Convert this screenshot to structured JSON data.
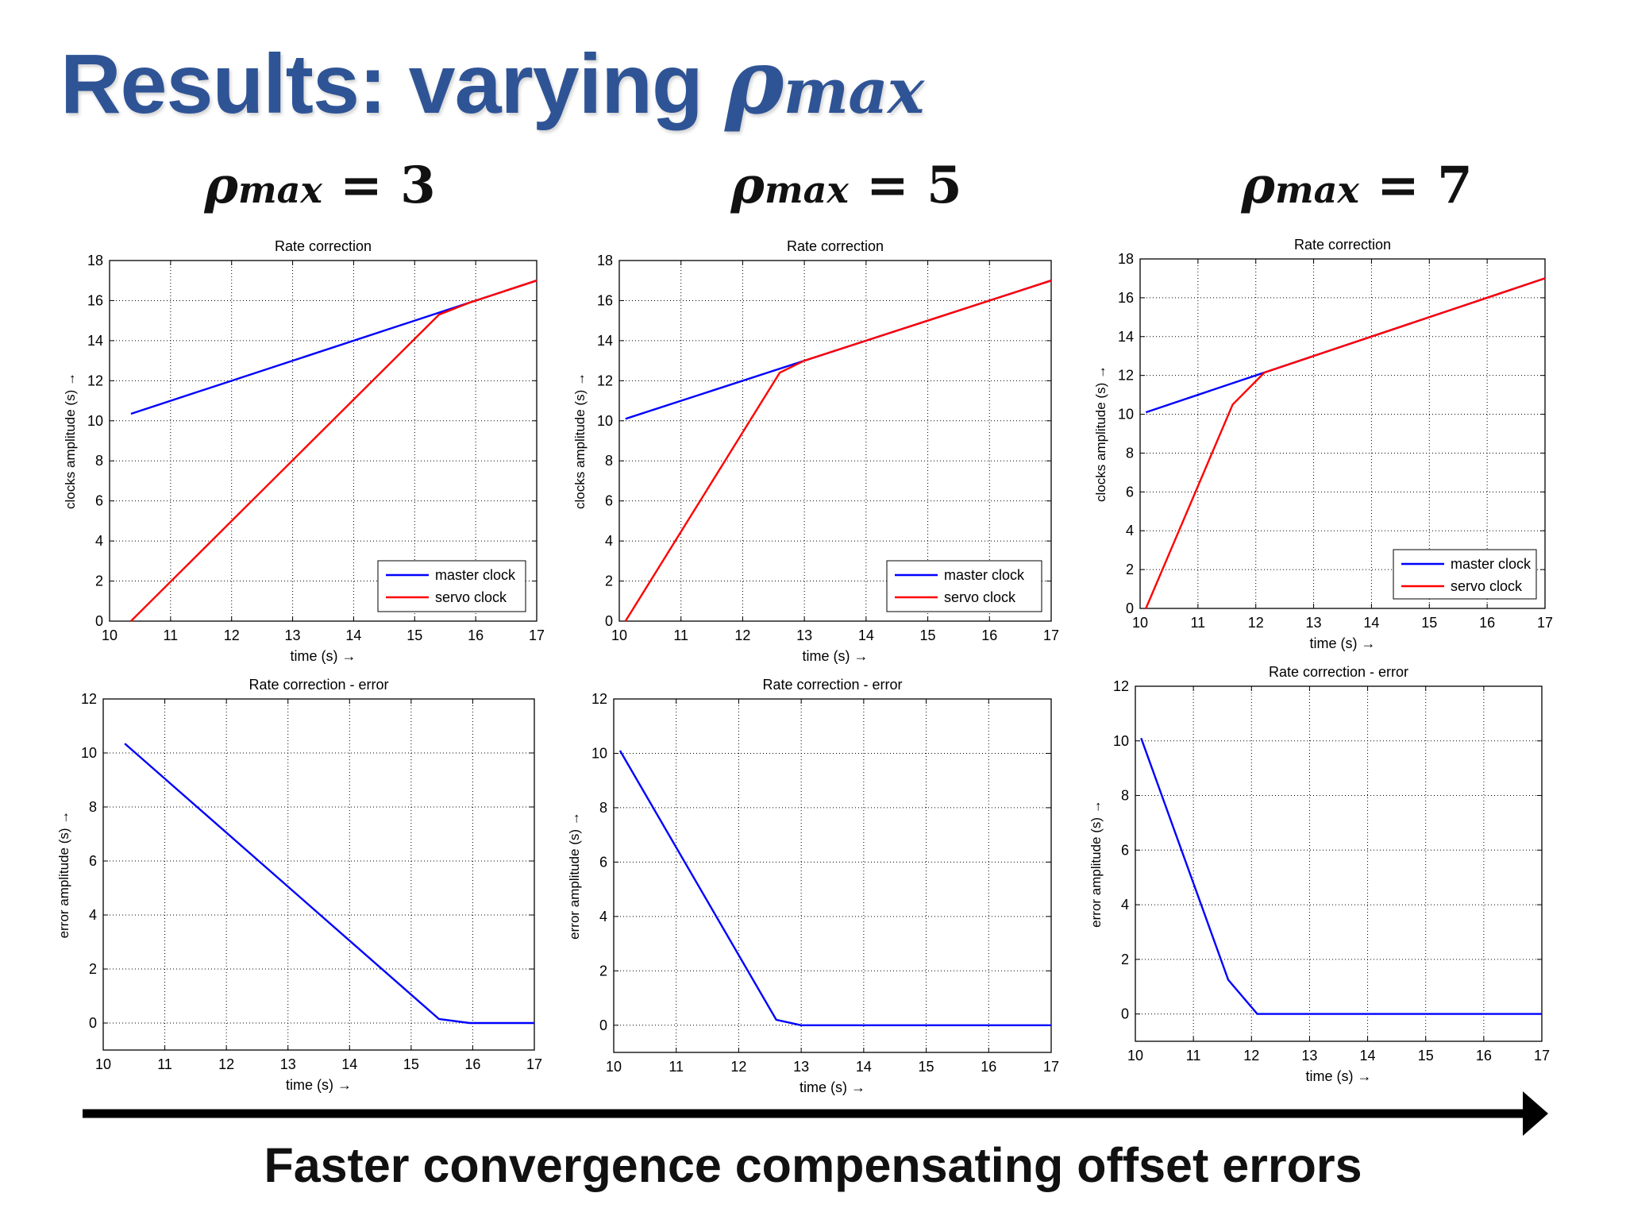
{
  "slide": {
    "title_text": "Results: varying ",
    "title_symbol": "ρ",
    "title_subscript": "max",
    "conclusion": "Faster convergence compensating offset errors"
  },
  "columns": [
    {
      "symbol": "ρ",
      "subscript": "max",
      "eq": " = 3"
    },
    {
      "symbol": "ρ",
      "subscript": "max",
      "eq": " = 5"
    },
    {
      "symbol": "ρ",
      "subscript": "max",
      "eq": " = 7"
    }
  ],
  "colors": {
    "master": "#0000ff",
    "servo": "#ff0000",
    "error": "#0000ff",
    "arrow": "#000000",
    "title": "#2f5496"
  },
  "chart_data": [
    {
      "type": "line",
      "title": "Rate correction",
      "xlabel": "time (s) →",
      "ylabel": "clocks amplitude (s) →",
      "xlim": [
        10,
        17
      ],
      "ylim": [
        0,
        18
      ],
      "xticks": [
        10,
        11,
        12,
        13,
        14,
        15,
        16,
        17
      ],
      "yticks": [
        0,
        2,
        4,
        6,
        8,
        10,
        12,
        14,
        16,
        18
      ],
      "grid": true,
      "legend_position": "bottom-right",
      "series": [
        {
          "name": "master clock",
          "x": [
            10.35,
            17
          ],
          "y": [
            10.35,
            17
          ]
        },
        {
          "name": "servo clock",
          "x": [
            10.35,
            15.4,
            15.9,
            17
          ],
          "y": [
            0,
            15.3,
            15.9,
            17
          ]
        }
      ]
    },
    {
      "type": "line",
      "title": "Rate correction",
      "xlabel": "time (s) →",
      "ylabel": "clocks amplitude (s) →",
      "xlim": [
        10,
        17
      ],
      "ylim": [
        0,
        18
      ],
      "xticks": [
        10,
        11,
        12,
        13,
        14,
        15,
        16,
        17
      ],
      "yticks": [
        0,
        2,
        4,
        6,
        8,
        10,
        12,
        14,
        16,
        18
      ],
      "grid": true,
      "legend_position": "bottom-right",
      "series": [
        {
          "name": "master clock",
          "x": [
            10.1,
            17
          ],
          "y": [
            10.1,
            17
          ]
        },
        {
          "name": "servo clock",
          "x": [
            10.1,
            12.6,
            13.0,
            17
          ],
          "y": [
            0,
            12.4,
            13.0,
            17
          ]
        }
      ]
    },
    {
      "type": "line",
      "title": "Rate correction",
      "xlabel": "time (s) →",
      "ylabel": "clocks amplitude (s) →",
      "xlim": [
        10,
        17
      ],
      "ylim": [
        0,
        18
      ],
      "xticks": [
        10,
        11,
        12,
        13,
        14,
        15,
        16,
        17
      ],
      "yticks": [
        0,
        2,
        4,
        6,
        8,
        10,
        12,
        14,
        16,
        18
      ],
      "grid": true,
      "legend_position": "bottom-right",
      "series": [
        {
          "name": "master clock",
          "x": [
            10.1,
            17
          ],
          "y": [
            10.1,
            17
          ]
        },
        {
          "name": "servo clock",
          "x": [
            10.1,
            11.6,
            12.15,
            17
          ],
          "y": [
            0,
            10.5,
            12.15,
            17
          ]
        }
      ]
    },
    {
      "type": "line",
      "title": "Rate correction - error",
      "xlabel": "time (s) →",
      "ylabel": "error amplitude (s) →",
      "xlim": [
        10,
        17
      ],
      "ylim": [
        -1,
        12
      ],
      "xticks": [
        10,
        11,
        12,
        13,
        14,
        15,
        16,
        17
      ],
      "yticks": [
        0,
        2,
        4,
        6,
        8,
        10,
        12
      ],
      "grid": true,
      "series": [
        {
          "x": [
            10.35,
            15.45,
            15.95,
            17
          ],
          "y": [
            10.35,
            0.15,
            0,
            0
          ]
        }
      ]
    },
    {
      "type": "line",
      "title": "Rate correction - error",
      "xlabel": "time (s) →",
      "ylabel": "error amplitude (s) →",
      "xlim": [
        10,
        17
      ],
      "ylim": [
        -1,
        12
      ],
      "xticks": [
        10,
        11,
        12,
        13,
        14,
        15,
        16,
        17
      ],
      "yticks": [
        0,
        2,
        4,
        6,
        8,
        10,
        12
      ],
      "grid": true,
      "series": [
        {
          "x": [
            10.1,
            12.6,
            13.0,
            17
          ],
          "y": [
            10.1,
            0.2,
            0,
            0
          ]
        }
      ]
    },
    {
      "type": "line",
      "title": "Rate correction - error",
      "xlabel": "time (s) →",
      "ylabel": "error amplitude (s) →",
      "xlim": [
        10,
        17
      ],
      "ylim": [
        -1,
        12
      ],
      "xticks": [
        10,
        11,
        12,
        13,
        14,
        15,
        16,
        17
      ],
      "yticks": [
        0,
        2,
        4,
        6,
        8,
        10,
        12
      ],
      "grid": true,
      "series": [
        {
          "x": [
            10.1,
            11.6,
            12.1,
            17
          ],
          "y": [
            10.1,
            1.25,
            0,
            0
          ]
        }
      ]
    }
  ]
}
